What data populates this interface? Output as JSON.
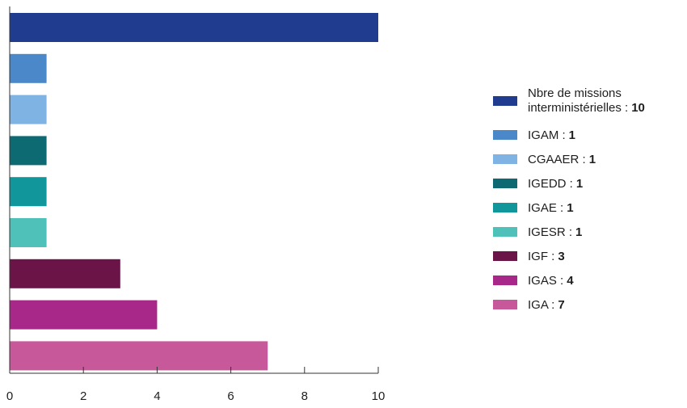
{
  "chart_data": {
    "type": "bar",
    "orientation": "horizontal",
    "title": "",
    "xlabel": "",
    "ylabel": "",
    "xlim": [
      0,
      10
    ],
    "x_ticks": [
      0,
      2,
      4,
      6,
      8,
      10
    ],
    "grid": false,
    "legend_position": "right",
    "bars": [
      {
        "name": "Nbre de missions interministérielles",
        "legend_lines": [
          "Nbre de missions",
          "interministérielles :"
        ],
        "value": 10,
        "color": "#1f3c8f"
      },
      {
        "name": "IGAM",
        "legend_lines": [
          "IGAM :"
        ],
        "value": 1,
        "color": "#4a88c9"
      },
      {
        "name": "CGAAER",
        "legend_lines": [
          "CGAAER :"
        ],
        "value": 1,
        "color": "#7fb3e3"
      },
      {
        "name": "IGEDD",
        "legend_lines": [
          "IGEDD :"
        ],
        "value": 1,
        "color": "#0d6a73"
      },
      {
        "name": "IGAE",
        "legend_lines": [
          "IGAE :"
        ],
        "value": 1,
        "color": "#11969c"
      },
      {
        "name": "IGESR",
        "legend_lines": [
          "IGESR :"
        ],
        "value": 1,
        "color": "#4fc1b8"
      },
      {
        "name": "IGF",
        "legend_lines": [
          "IGF :"
        ],
        "value": 3,
        "color": "#6b1448"
      },
      {
        "name": "IGAS",
        "legend_lines": [
          "IGAS :"
        ],
        "value": 4,
        "color": "#a8288a"
      },
      {
        "name": "IGA",
        "legend_lines": [
          "IGA :"
        ],
        "value": 7,
        "color": "#c7589a"
      }
    ]
  }
}
